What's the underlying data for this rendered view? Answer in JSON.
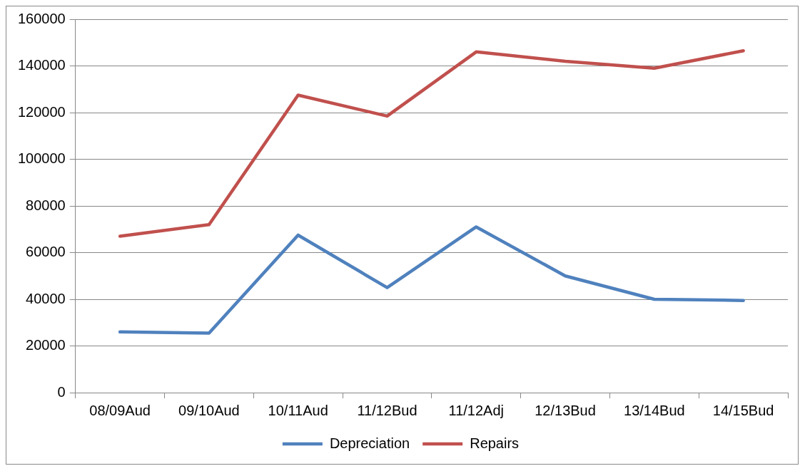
{
  "chart_data": {
    "type": "line",
    "categories": [
      "08/09Aud",
      "09/10Aud",
      "10/11Aud",
      "11/12Bud",
      "11/12Adj",
      "12/13Bud",
      "13/14Bud",
      "14/15Bud"
    ],
    "series": [
      {
        "name": "Depreciation",
        "color": "#4f81bd",
        "values": [
          26000,
          25500,
          67500,
          45000,
          71000,
          50000,
          40000,
          39500
        ]
      },
      {
        "name": "Repairs",
        "color": "#c0504d",
        "values": [
          67000,
          72000,
          127500,
          118500,
          146000,
          142000,
          139000,
          146500
        ]
      }
    ],
    "ylim": [
      0,
      160000
    ],
    "yticks": [
      0,
      20000,
      40000,
      60000,
      80000,
      100000,
      120000,
      140000,
      160000
    ],
    "grid": "y",
    "legend": "bottom",
    "marker": "none",
    "line_style": "solid"
  }
}
